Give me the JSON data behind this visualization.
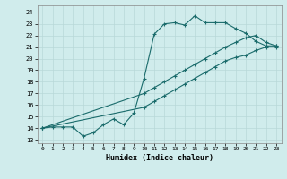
{
  "xlabel": "Humidex (Indice chaleur)",
  "xlim": [
    -0.5,
    23.5
  ],
  "ylim": [
    12.7,
    24.6
  ],
  "yticks": [
    13,
    14,
    15,
    16,
    17,
    18,
    19,
    20,
    21,
    22,
    23,
    24
  ],
  "xticks": [
    0,
    1,
    2,
    3,
    4,
    5,
    6,
    7,
    8,
    9,
    10,
    11,
    12,
    13,
    14,
    15,
    16,
    17,
    18,
    19,
    20,
    21,
    22,
    23
  ],
  "bg_color": "#d0ecec",
  "grid_color": "#b8d8d8",
  "line_color": "#1a6b6b",
  "line1_x": [
    0,
    1,
    2,
    3,
    4,
    5,
    6,
    7,
    8,
    9,
    10,
    11,
    12,
    13,
    14,
    15,
    16,
    17,
    18,
    19,
    20,
    21,
    22,
    23
  ],
  "line1_y": [
    14.0,
    14.1,
    14.1,
    14.1,
    13.3,
    13.6,
    14.3,
    14.8,
    14.3,
    15.3,
    18.3,
    22.1,
    23.0,
    23.1,
    22.9,
    23.7,
    23.1,
    23.1,
    23.1,
    22.6,
    22.2,
    21.5,
    21.1,
    21.1
  ],
  "line2_x": [
    0,
    10,
    11,
    12,
    13,
    14,
    15,
    16,
    17,
    18,
    19,
    20,
    21,
    22,
    23
  ],
  "line2_y": [
    14.0,
    17.0,
    17.5,
    18.0,
    18.5,
    19.0,
    19.5,
    20.0,
    20.5,
    21.0,
    21.4,
    21.8,
    22.0,
    21.4,
    21.1
  ],
  "line3_x": [
    0,
    10,
    11,
    12,
    13,
    14,
    15,
    16,
    17,
    18,
    19,
    20,
    21,
    22,
    23
  ],
  "line3_y": [
    14.0,
    15.8,
    16.3,
    16.8,
    17.3,
    17.8,
    18.3,
    18.8,
    19.3,
    19.8,
    20.1,
    20.3,
    20.7,
    21.0,
    21.0
  ]
}
